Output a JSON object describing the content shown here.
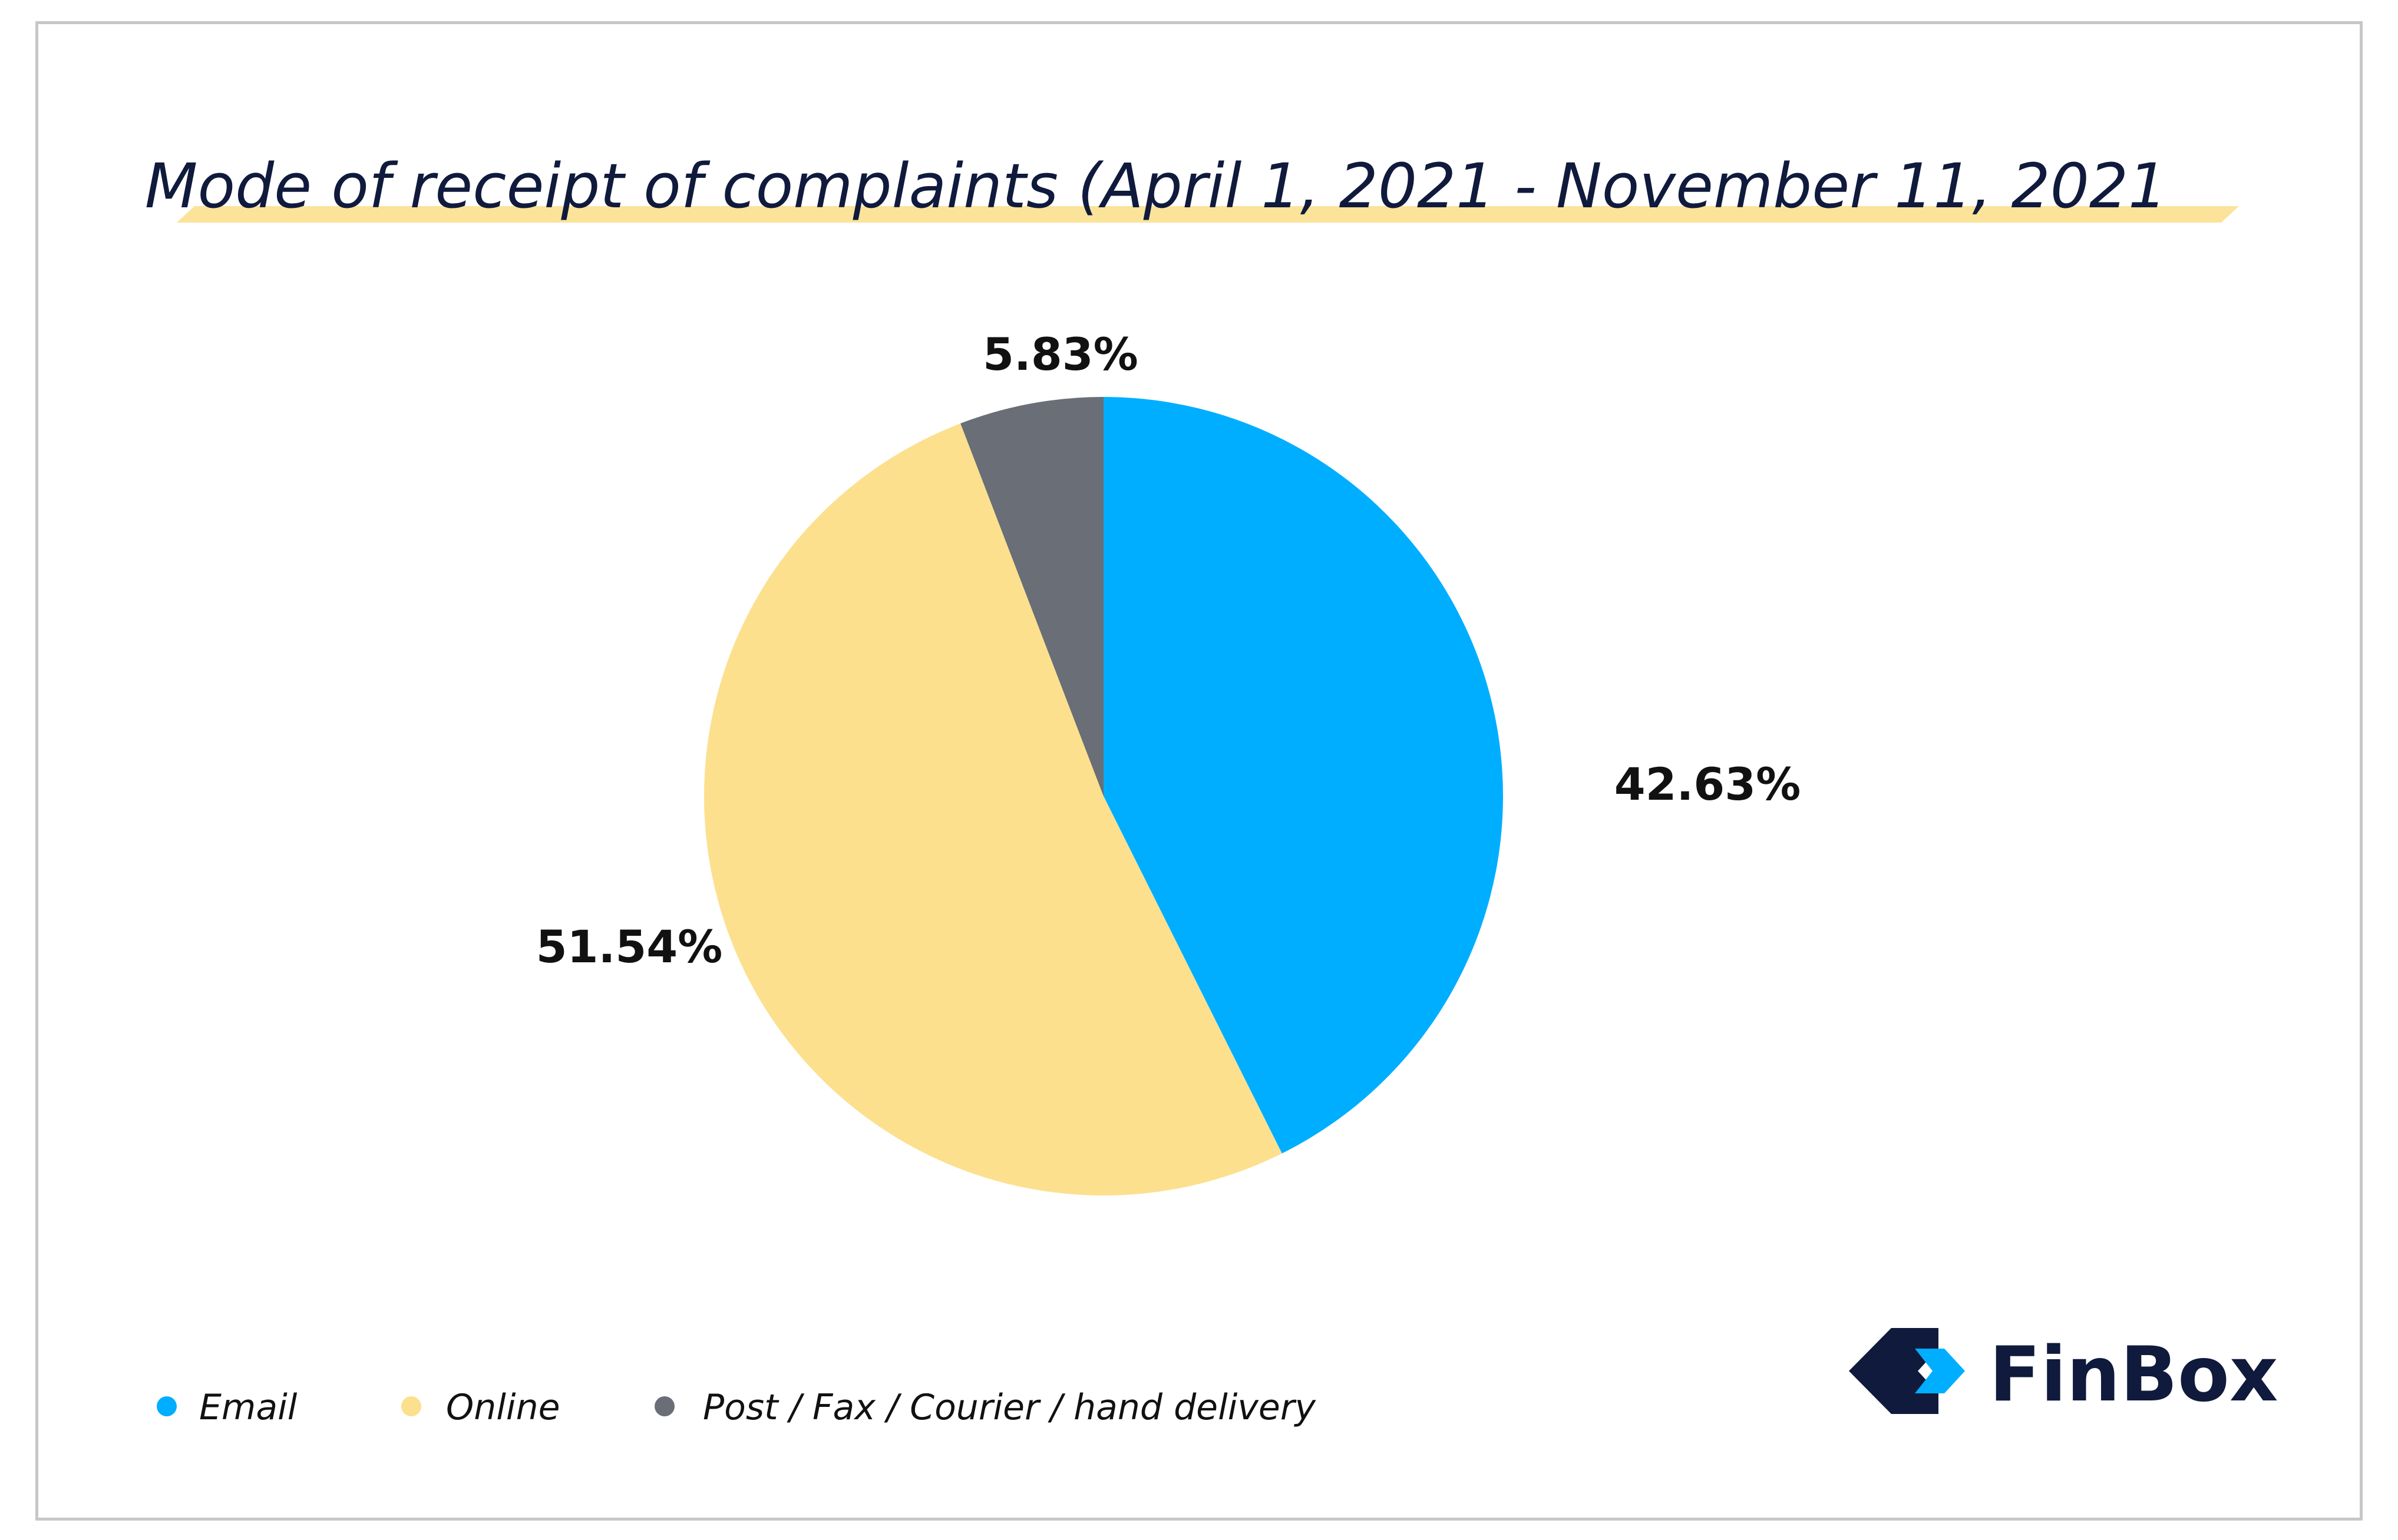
{
  "chart_data": {
    "type": "pie",
    "title": "Mode of receipt of complaints (April 1, 2021 - November 11, 2021",
    "start_angle_deg": 0,
    "direction": "clockwise",
    "slices": [
      {
        "name": "Email",
        "value": 42.63,
        "label": "42.63%",
        "color": "#00aeff"
      },
      {
        "name": "Online",
        "value": 51.54,
        "label": "51.54%",
        "color": "#fce08e"
      },
      {
        "name": "Post / Fax / Courier / hand delivery",
        "value": 5.83,
        "label": "5.83%",
        "color": "#696e77"
      }
    ],
    "legend_position": "bottom-left"
  },
  "brand": {
    "name": "FinBox",
    "colors": {
      "dark": "#0f1a3c",
      "light": "#00aeff"
    }
  },
  "colors": {
    "title_highlight": "#fbe39a",
    "border": "#c7c7c7"
  }
}
